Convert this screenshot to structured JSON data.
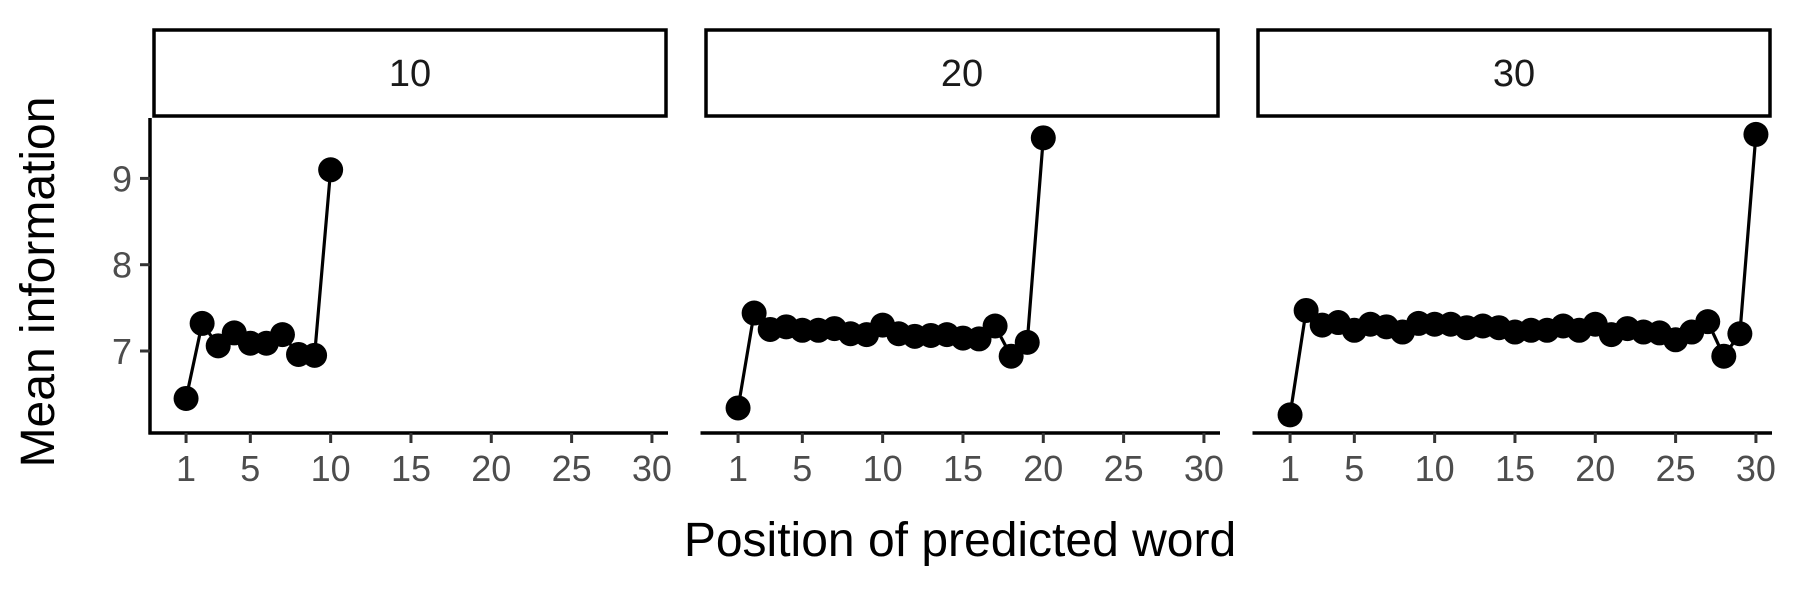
{
  "chart_data": {
    "type": "line",
    "xlabel": "Position of predicted word",
    "ylabel": "Mean information",
    "xlim": [
      0,
      31
    ],
    "ylim": [
      6.05,
      9.7
    ],
    "x_ticks": [
      1,
      5,
      10,
      15,
      20,
      25,
      30
    ],
    "y_ticks": [
      7,
      8,
      9
    ],
    "marker": "filled-circle",
    "color": "#000000",
    "facet_by": "sentence length",
    "facets": [
      {
        "label": "10",
        "x": [
          1,
          2,
          3,
          4,
          5,
          6,
          7,
          8,
          9,
          10
        ],
        "y": [
          6.45,
          7.32,
          7.06,
          7.21,
          7.09,
          7.09,
          7.19,
          6.96,
          6.95,
          9.1
        ]
      },
      {
        "label": "20",
        "x": [
          1,
          2,
          3,
          4,
          5,
          6,
          7,
          8,
          9,
          10,
          11,
          12,
          13,
          14,
          15,
          16,
          17,
          18,
          19,
          20
        ],
        "y": [
          6.34,
          7.44,
          7.25,
          7.28,
          7.24,
          7.24,
          7.26,
          7.2,
          7.19,
          7.3,
          7.2,
          7.17,
          7.18,
          7.19,
          7.15,
          7.14,
          7.29,
          6.94,
          7.1,
          9.47
        ]
      },
      {
        "label": "30",
        "x": [
          1,
          2,
          3,
          4,
          5,
          6,
          7,
          8,
          9,
          10,
          11,
          12,
          13,
          14,
          15,
          16,
          17,
          18,
          19,
          20,
          21,
          22,
          23,
          24,
          25,
          26,
          27,
          28,
          29,
          30
        ],
        "y": [
          6.26,
          7.47,
          7.3,
          7.33,
          7.24,
          7.31,
          7.28,
          7.22,
          7.32,
          7.31,
          7.31,
          7.27,
          7.29,
          7.27,
          7.22,
          7.24,
          7.24,
          7.29,
          7.24,
          7.31,
          7.19,
          7.26,
          7.22,
          7.21,
          7.13,
          7.22,
          7.34,
          6.94,
          7.2,
          9.51
        ]
      }
    ]
  }
}
